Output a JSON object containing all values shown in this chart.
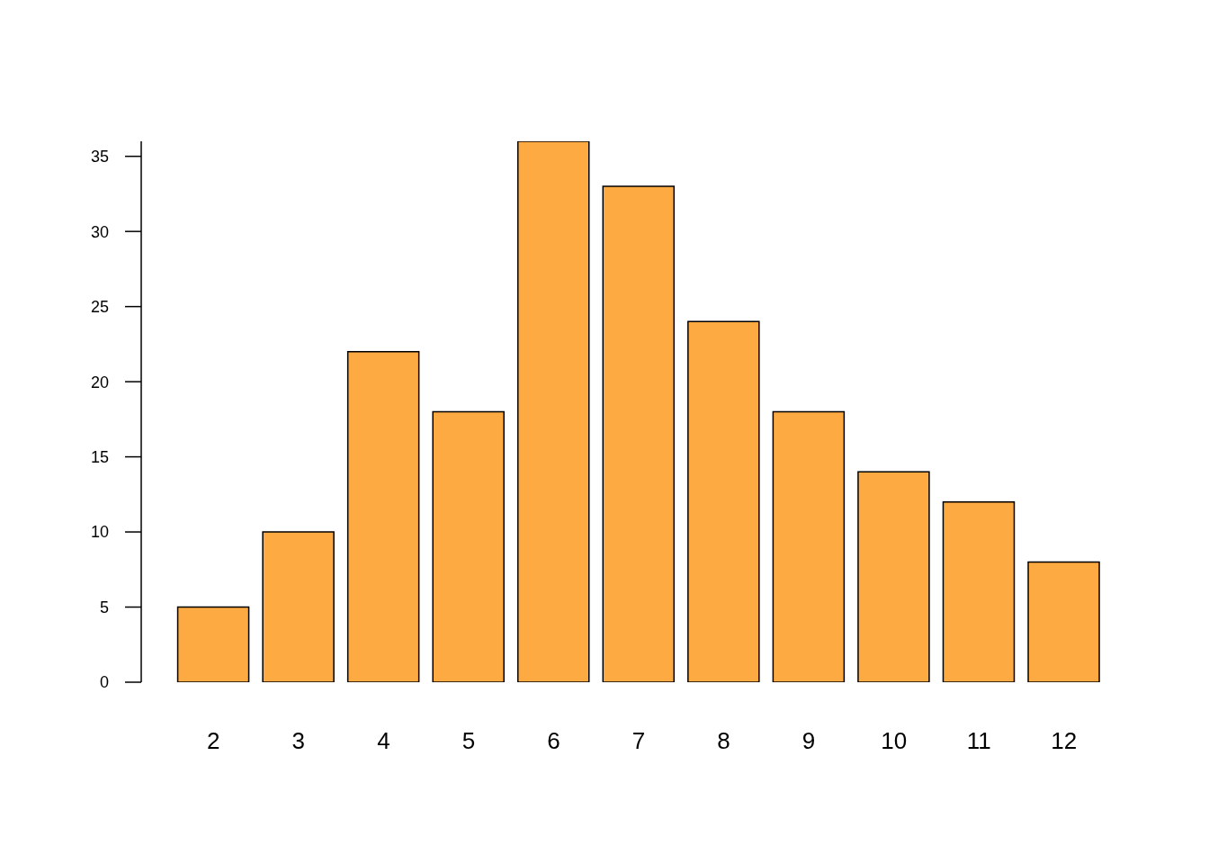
{
  "chart_data": {
    "type": "bar",
    "categories": [
      "2",
      "3",
      "4",
      "5",
      "6",
      "7",
      "8",
      "9",
      "10",
      "11",
      "12"
    ],
    "values": [
      5,
      10,
      22,
      18,
      36,
      33,
      24,
      18,
      14,
      12,
      8
    ],
    "color": "#fdaa43",
    "ylim": [
      0,
      36
    ],
    "yticks": [
      0,
      5,
      10,
      15,
      20,
      25,
      30,
      35
    ]
  }
}
